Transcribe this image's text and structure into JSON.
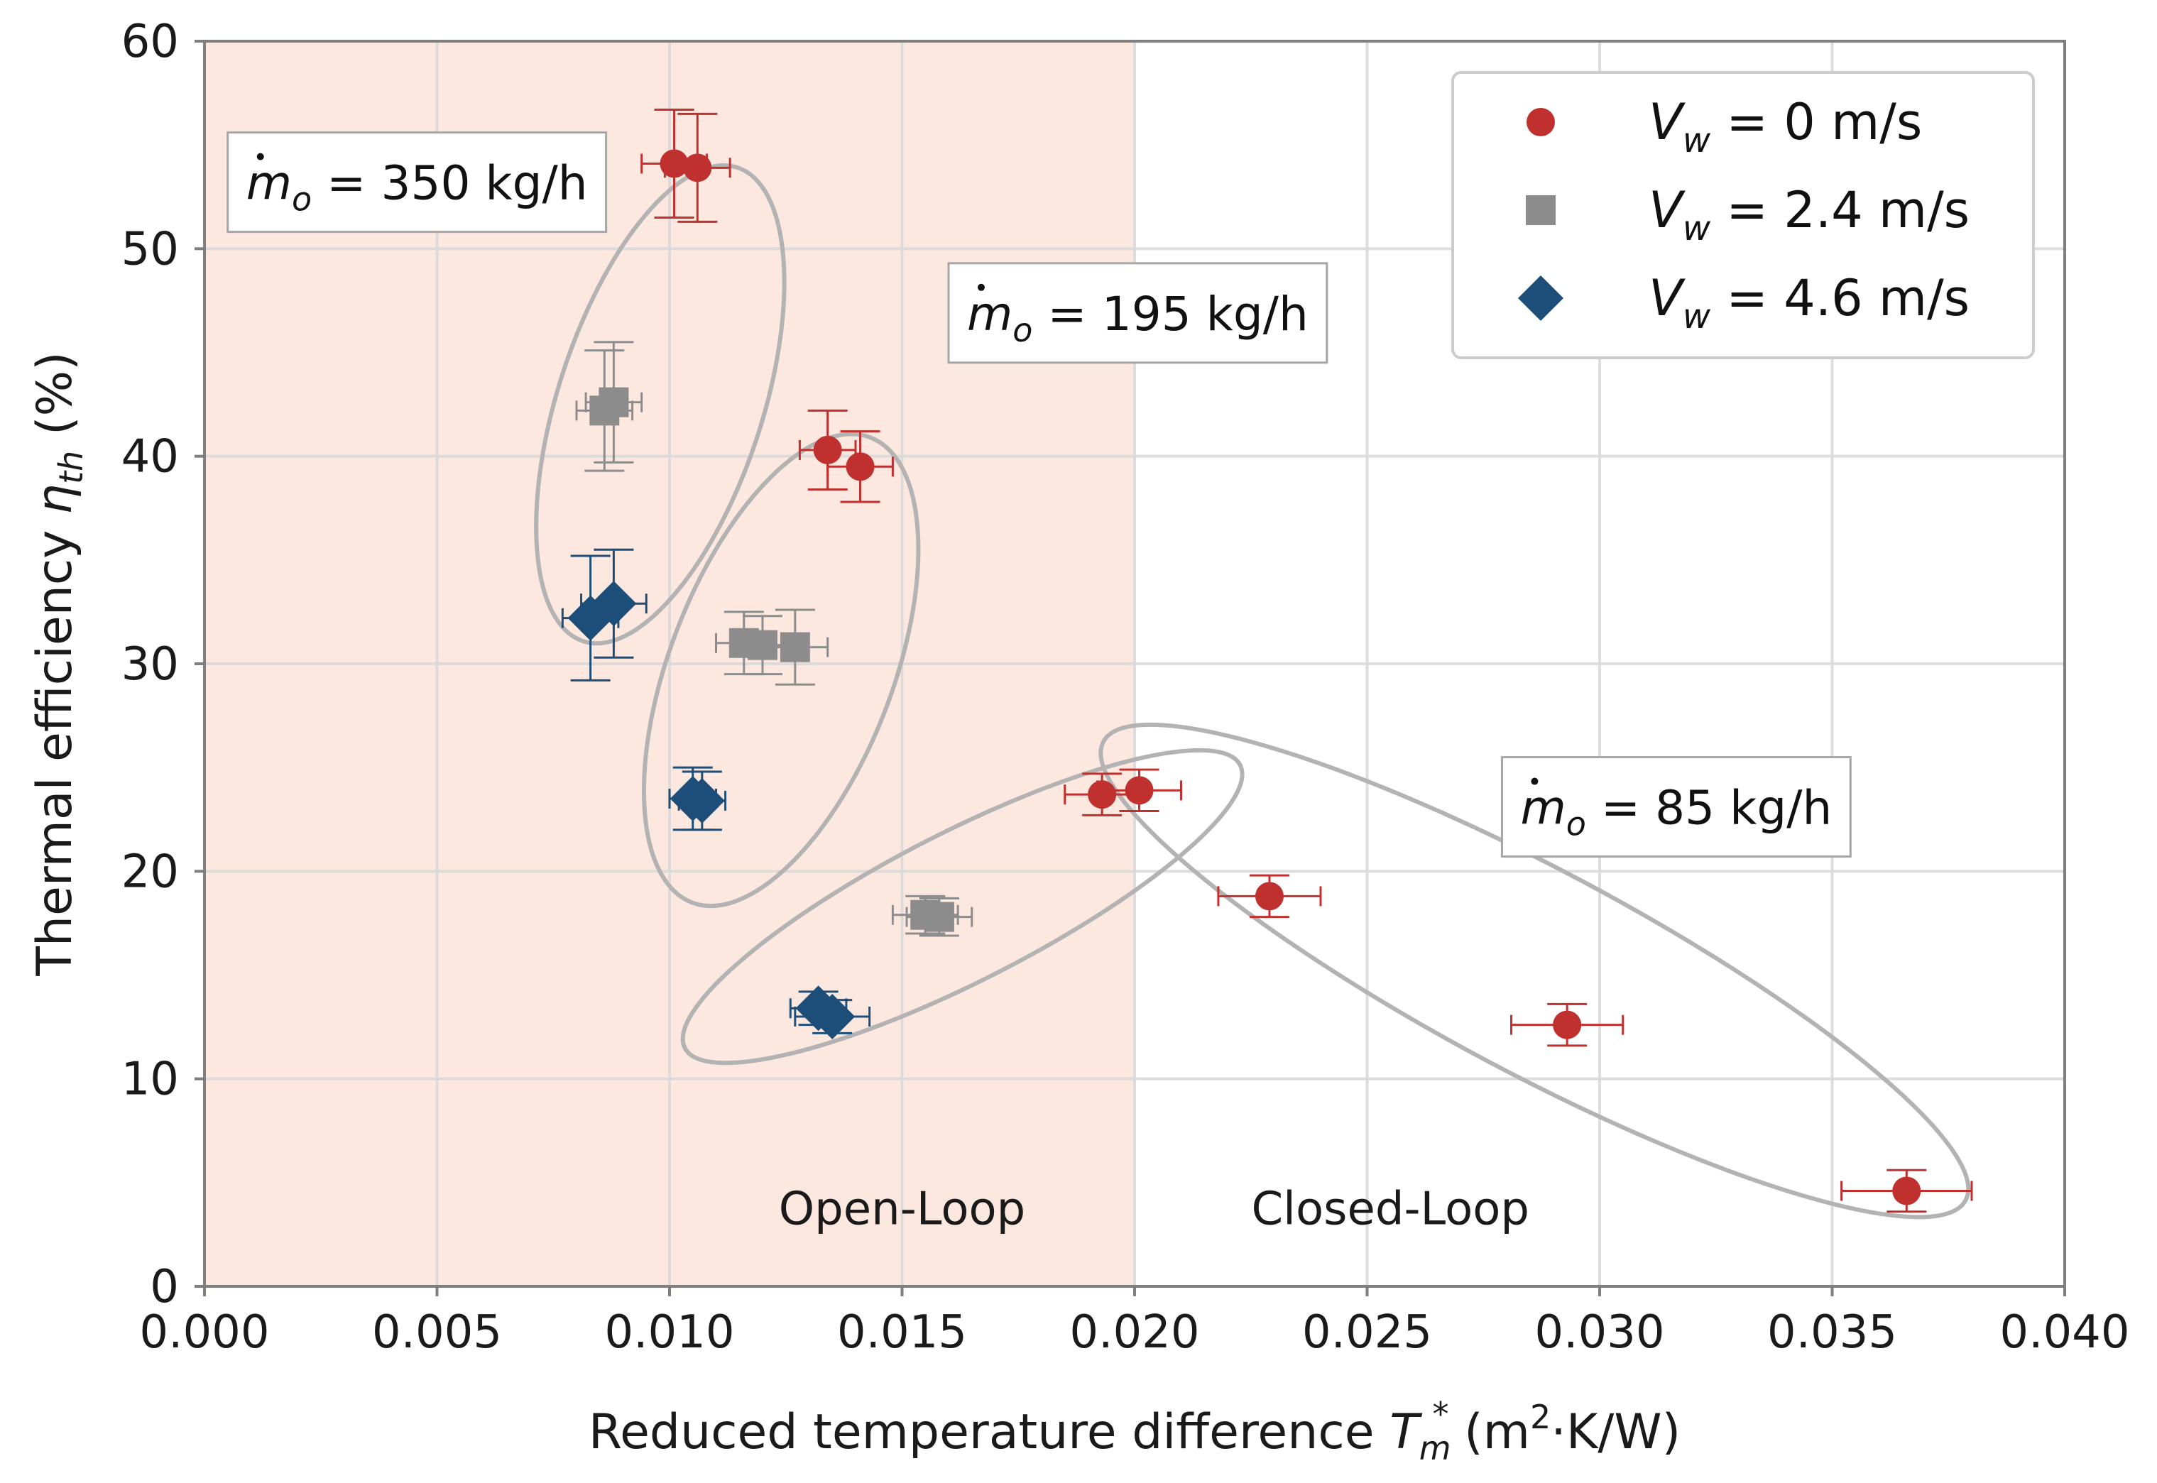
{
  "chart_data": {
    "type": "scatter",
    "title": "",
    "xlabel": {
      "prefix": "Reduced temperature difference ",
      "symbol": "T",
      "sub": "m",
      "sup": "*",
      "unit_open": " (m",
      "unit_sup": "2",
      "unit_close": "·K/W)"
    },
    "ylabel": {
      "prefix": "Thermal efficiency ",
      "symbol": "η",
      "sub": "th",
      "suffix": " (%)"
    },
    "xlim": [
      0.0,
      0.04
    ],
    "ylim": [
      0,
      60
    ],
    "xticks": [
      0.0,
      0.005,
      0.01,
      0.015,
      0.02,
      0.025,
      0.03,
      0.035,
      0.04
    ],
    "xtick_labels": [
      "0.000",
      "0.005",
      "0.010",
      "0.015",
      "0.020",
      "0.025",
      "0.030",
      "0.035",
      "0.040"
    ],
    "yticks": [
      0,
      10,
      20,
      30,
      40,
      50,
      60
    ],
    "ytick_labels": [
      "0",
      "10",
      "20",
      "30",
      "40",
      "50",
      "60"
    ],
    "grid": true,
    "legend_position": "top-right",
    "regions": [
      {
        "label": "Open-Loop",
        "x_range": [
          0.0,
          0.02
        ],
        "color": "#fde8e0",
        "label_at": [
          0.015,
          3
        ]
      },
      {
        "label": "Closed-Loop",
        "x_range": [
          0.02,
          0.04
        ],
        "color": "#ffffff",
        "label_at": [
          0.0255,
          3
        ]
      }
    ],
    "series": [
      {
        "name": "V_w = 0 m/s",
        "legend": {
          "symbol": "V",
          "sub": "w",
          "value": " = 0 m/s"
        },
        "marker": "circle",
        "color": "#c0302f",
        "points": [
          {
            "x": 0.0101,
            "y": 54.1,
            "xerr": 0.0007,
            "yerr": 2.6
          },
          {
            "x": 0.0106,
            "y": 53.9,
            "xerr": 0.0007,
            "yerr": 2.6
          },
          {
            "x": 0.0134,
            "y": 40.3,
            "xerr": 0.0006,
            "yerr": 1.9
          },
          {
            "x": 0.0141,
            "y": 39.5,
            "xerr": 0.0007,
            "yerr": 1.7
          },
          {
            "x": 0.0193,
            "y": 23.7,
            "xerr": 0.0008,
            "yerr": 1.0
          },
          {
            "x": 0.0201,
            "y": 23.9,
            "xerr": 0.0009,
            "yerr": 1.0
          },
          {
            "x": 0.0229,
            "y": 18.8,
            "xerr": 0.0011,
            "yerr": 1.0
          },
          {
            "x": 0.0293,
            "y": 12.6,
            "xerr": 0.0012,
            "yerr": 1.0
          },
          {
            "x": 0.0366,
            "y": 4.6,
            "xerr": 0.0014,
            "yerr": 1.0
          }
        ]
      },
      {
        "name": "V_w = 2.4 m/s",
        "legend": {
          "symbol": "V",
          "sub": "w",
          "value": " = 2.4 m/s"
        },
        "marker": "square",
        "color": "#8c8c8c",
        "points": [
          {
            "x": 0.0086,
            "y": 42.2,
            "xerr": 0.0006,
            "yerr": 2.9
          },
          {
            "x": 0.0088,
            "y": 42.6,
            "xerr": 0.0006,
            "yerr": 2.9
          },
          {
            "x": 0.0116,
            "y": 31.0,
            "xerr": 0.0006,
            "yerr": 1.5
          },
          {
            "x": 0.012,
            "y": 30.9,
            "xerr": 0.0006,
            "yerr": 1.4
          },
          {
            "x": 0.0127,
            "y": 30.8,
            "xerr": 0.0007,
            "yerr": 1.8
          },
          {
            "x": 0.0155,
            "y": 17.9,
            "xerr": 0.0007,
            "yerr": 0.9
          },
          {
            "x": 0.0158,
            "y": 17.8,
            "xerr": 0.0007,
            "yerr": 0.9
          }
        ]
      },
      {
        "name": "V_w = 4.6 m/s",
        "legend": {
          "symbol": "V",
          "sub": "w",
          "value": " = 4.6 m/s"
        },
        "marker": "diamond",
        "color": "#1d4e79",
        "points": [
          {
            "x": 0.0083,
            "y": 32.2,
            "xerr": 0.0006,
            "yerr": 3.0
          },
          {
            "x": 0.0088,
            "y": 32.9,
            "xerr": 0.0007,
            "yerr": 2.6
          },
          {
            "x": 0.0105,
            "y": 23.5,
            "xerr": 0.0005,
            "yerr": 1.5
          },
          {
            "x": 0.0107,
            "y": 23.4,
            "xerr": 0.0005,
            "yerr": 1.4
          },
          {
            "x": 0.0132,
            "y": 13.4,
            "xerr": 0.0006,
            "yerr": 0.8
          },
          {
            "x": 0.0135,
            "y": 13.0,
            "xerr": 0.0008,
            "yerr": 0.8
          }
        ]
      }
    ],
    "ellipses": [
      {
        "group": "350",
        "center": [
          0.0098,
          42.5
        ],
        "rx": 0.0022,
        "ry": 12.0,
        "rotate": 18
      },
      {
        "group": "195",
        "center": [
          0.0124,
          29.7
        ],
        "rx": 0.0024,
        "ry": 12.0,
        "rotate": 21
      },
      {
        "group": "85-a",
        "center": [
          0.0163,
          18.3
        ],
        "rx": 0.0067,
        "ry": 3.6,
        "rotate": -27
      },
      {
        "group": "85-b",
        "center": [
          0.0286,
          15.2
        ],
        "rx": 0.0105,
        "ry": 4.9,
        "rotate": 28
      }
    ],
    "annotations": [
      {
        "id": "350",
        "symbol": "m",
        "sub": "o",
        "text": " = 350 kg/h",
        "at": [
          0.0005,
          55.6
        ]
      },
      {
        "id": "195",
        "symbol": "m",
        "sub": "o",
        "text": " = 195 kg/h",
        "at": [
          0.016,
          49.3
        ]
      },
      {
        "id": "85",
        "symbol": "m",
        "sub": "o",
        "text": " = 85 kg/h",
        "at": [
          0.0279,
          25.5
        ]
      }
    ]
  }
}
